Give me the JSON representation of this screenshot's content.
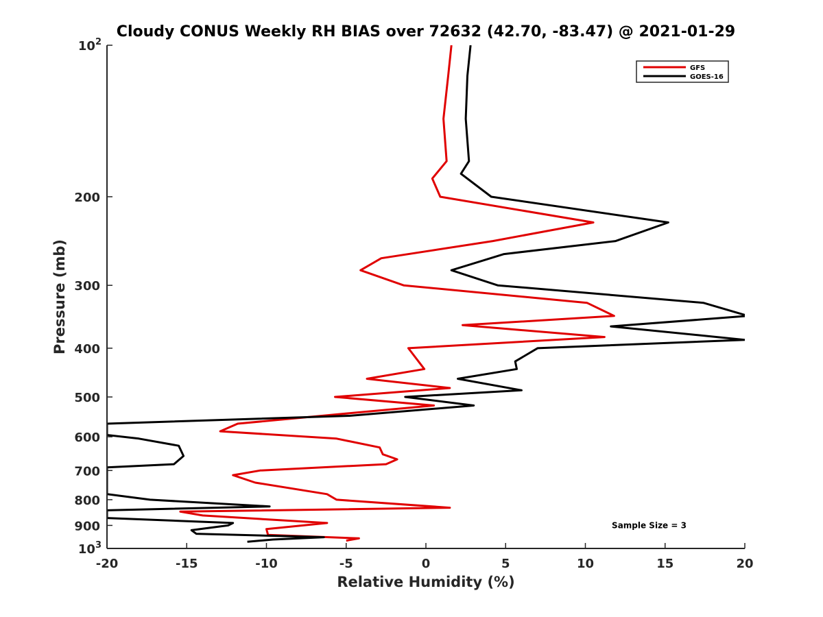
{
  "chart_data": {
    "type": "line",
    "title": "Cloudy CONUS Weekly RH BIAS over 72632 (42.70, -83.47) @ 2021-01-29",
    "xlabel": "Relative Humidity (%)",
    "ylabel": "Pressure (mb)",
    "xlim": [
      -20,
      20
    ],
    "ylim": [
      100,
      1000
    ],
    "y_scale": "log",
    "y_reversed": true,
    "grid": false,
    "legend_position": "top-right",
    "xticks": [
      -20,
      -15,
      -10,
      -5,
      0,
      5,
      10,
      15,
      20
    ],
    "xtick_labels": [
      "-20",
      "-15",
      "-10",
      "-5",
      "0",
      "5",
      "10",
      "15",
      "20"
    ],
    "yticks": [
      200,
      300,
      400,
      500,
      600,
      700,
      800,
      900
    ],
    "ytick_labels": [
      "200",
      "300",
      "400",
      "500",
      "600",
      "700",
      "800",
      "900"
    ],
    "y_top_label": {
      "base": "10",
      "exp": "2"
    },
    "y_bottom_label": {
      "base": "10",
      "exp": "3"
    },
    "series": [
      {
        "name": "GFS",
        "color": "#e00000",
        "points": [
          [
            1.6,
            100
          ],
          [
            1.4,
            115
          ],
          [
            1.1,
            140
          ],
          [
            1.3,
            170
          ],
          [
            0.4,
            184
          ],
          [
            0.9,
            200
          ],
          [
            10.5,
            225
          ],
          [
            4.2,
            245
          ],
          [
            -2.8,
            265
          ],
          [
            -4.1,
            280
          ],
          [
            -1.4,
            300
          ],
          [
            10.1,
            325
          ],
          [
            11.8,
            345
          ],
          [
            2.3,
            360
          ],
          [
            11.2,
            380
          ],
          [
            -1.1,
            400
          ],
          [
            -0.1,
            440
          ],
          [
            -3.7,
            460
          ],
          [
            1.5,
            480
          ],
          [
            -5.7,
            500
          ],
          [
            0.5,
            520
          ],
          [
            -3.8,
            535
          ],
          [
            -11.8,
            565
          ],
          [
            -12.9,
            585
          ],
          [
            -5.6,
            605
          ],
          [
            -2.9,
            630
          ],
          [
            -2.7,
            650
          ],
          [
            -1.8,
            665
          ],
          [
            -2.5,
            680
          ],
          [
            -10.4,
            700
          ],
          [
            -12.1,
            715
          ],
          [
            -10.7,
            740
          ],
          [
            -6.2,
            780
          ],
          [
            -5.6,
            800
          ],
          [
            1.5,
            830
          ],
          [
            -15.4,
            845
          ],
          [
            -14.0,
            860
          ],
          [
            -6.2,
            890
          ],
          [
            -10.0,
            915
          ],
          [
            -9.9,
            940
          ],
          [
            -4.2,
            955
          ],
          [
            -5.0,
            965
          ]
        ]
      },
      {
        "name": "GOES-16",
        "color": "#000000",
        "points": [
          [
            2.8,
            100
          ],
          [
            2.6,
            115
          ],
          [
            2.5,
            140
          ],
          [
            2.7,
            170
          ],
          [
            2.2,
            180
          ],
          [
            4.1,
            200
          ],
          [
            15.2,
            225
          ],
          [
            11.9,
            245
          ],
          [
            4.9,
            260
          ],
          [
            1.6,
            280
          ],
          [
            4.5,
            300
          ],
          [
            17.4,
            325
          ],
          [
            20.2,
            345
          ],
          [
            11.6,
            362
          ],
          [
            20.0,
            385
          ],
          [
            7.0,
            400
          ],
          [
            5.6,
            425
          ],
          [
            5.7,
            440
          ],
          [
            2.0,
            460
          ],
          [
            6.0,
            485
          ],
          [
            -1.3,
            500
          ],
          [
            3.0,
            520
          ],
          [
            -4.8,
            545
          ],
          [
            -20.0,
            565
          ],
          [
            -20.0,
            595
          ],
          [
            -18.0,
            605
          ],
          [
            -15.5,
            625
          ],
          [
            -15.2,
            655
          ],
          [
            -15.8,
            680
          ],
          [
            -20.0,
            690
          ],
          [
            -20.0,
            780
          ],
          [
            -17.3,
            800
          ],
          [
            -9.8,
            825
          ],
          [
            -20.0,
            840
          ],
          [
            -20.0,
            870
          ],
          [
            -12.1,
            890
          ],
          [
            -12.4,
            900
          ],
          [
            -14.7,
            920
          ],
          [
            -14.4,
            935
          ],
          [
            -6.4,
            950
          ],
          [
            -9.6,
            960
          ],
          [
            -11.2,
            970
          ]
        ]
      }
    ],
    "annotations": [
      {
        "text": "Sample Size = 3",
        "x": 14.0,
        "y": 900
      }
    ]
  }
}
